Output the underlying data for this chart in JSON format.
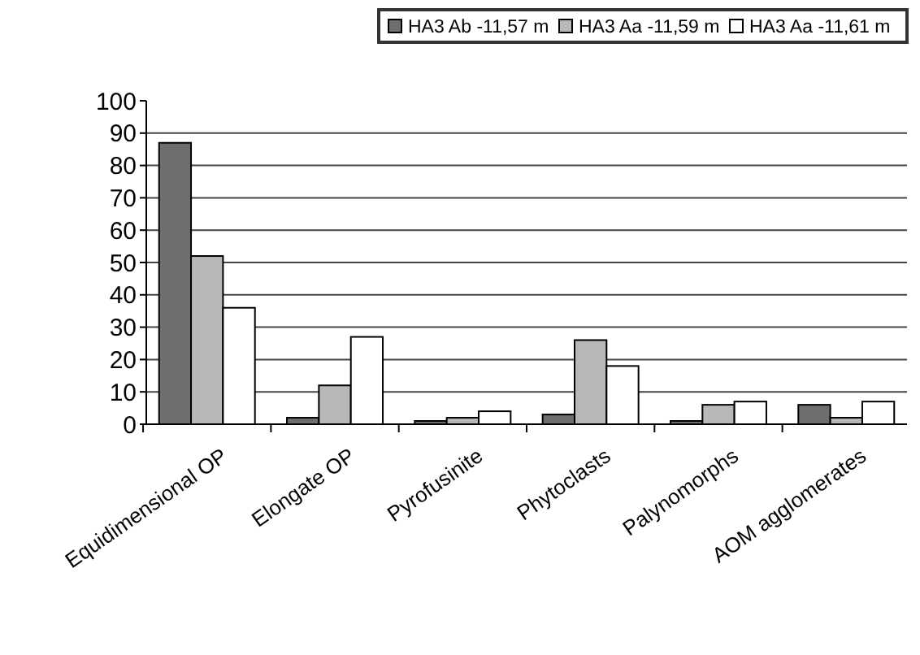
{
  "chart_data": {
    "type": "bar",
    "categories": [
      "Equidimensional OP",
      "Elongate OP",
      "Pyrofusinite",
      "Phytoclasts",
      "Palynomorphs",
      "AOM agglomerates"
    ],
    "series": [
      {
        "name": "HA3 Ab -11,57 m",
        "color": "#6e6e6e",
        "values": [
          87,
          2,
          1,
          3,
          1,
          6
        ]
      },
      {
        "name": "HA3 Aa -11,59 m",
        "color": "#b8b8b8",
        "values": [
          52,
          12,
          2,
          26,
          6,
          2
        ]
      },
      {
        "name": "HA3 Aa -11,61 m",
        "color": "#ffffff",
        "values": [
          36,
          27,
          4,
          18,
          7,
          7
        ]
      }
    ],
    "ylim": [
      0,
      100
    ],
    "yticks": [
      0,
      10,
      20,
      30,
      40,
      50,
      60,
      70,
      80,
      90,
      100
    ],
    "grid": "y",
    "legend": "top right"
  }
}
